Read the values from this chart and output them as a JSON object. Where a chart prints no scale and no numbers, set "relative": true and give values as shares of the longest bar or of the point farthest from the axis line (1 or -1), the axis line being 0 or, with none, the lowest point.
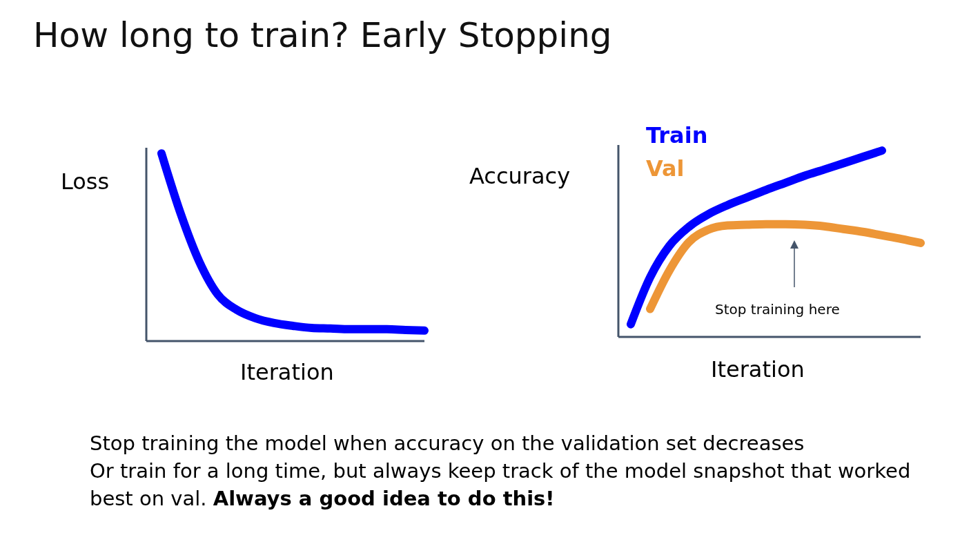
{
  "chart_data": [
    {
      "type": "line",
      "title": "How long to train? Early Stopping",
      "relative": true,
      "xlabel": "Iteration",
      "ylabel": "Loss",
      "categories": [
        null,
        null,
        null,
        null,
        null,
        null,
        null,
        null,
        null,
        null,
        null,
        null,
        null,
        null,
        null
      ],
      "tick_labels": false,
      "marker": "none",
      "line_style": "solid",
      "legend": false,
      "grid": false,
      "series": [
        {
          "color": "#0000ff",
          "values": [
            1,
            0.685,
            0.426,
            0.248,
            0.167,
            0.122,
            0.096,
            0.081,
            0.07,
            0.067,
            0.063,
            0.063,
            0.063,
            0.059,
            0.056
          ]
        }
      ]
    },
    {
      "type": "line",
      "relative": true,
      "xlabel": "Iteration",
      "ylabel": "Accuracy",
      "categories": [
        null,
        null,
        null,
        null,
        null,
        null,
        null,
        null,
        null,
        null,
        null,
        null,
        null,
        null,
        null,
        null
      ],
      "tick_labels": false,
      "marker": "none",
      "line_style": "solid",
      "legend": "top left",
      "grid": false,
      "annotations": [
        "Stop training here",
        "Stop training the model when accuracy on the validation set decreases",
        "Or train for a long time, but always keep track of the model snapshot that worked best on val.",
        "Always a good idea to do this!"
      ],
      "series": [
        {
          "name": "Train",
          "color": "#0000ff",
          "values": [
            0.068,
            0.32,
            0.489,
            0.59,
            0.658,
            0.707,
            0.748,
            0.789,
            0.827,
            0.865,
            0.898,
            0.932,
            0.966,
            1,
            null,
            null
          ]
        },
        {
          "name": "Val",
          "color": "#ed9637",
          "values": [
            null,
            0.15,
            0.357,
            0.508,
            0.575,
            0.598,
            0.602,
            0.605,
            0.605,
            0.602,
            0.594,
            0.579,
            0.564,
            0.545,
            0.526,
            0.504
          ]
        }
      ]
    }
  ]
}
